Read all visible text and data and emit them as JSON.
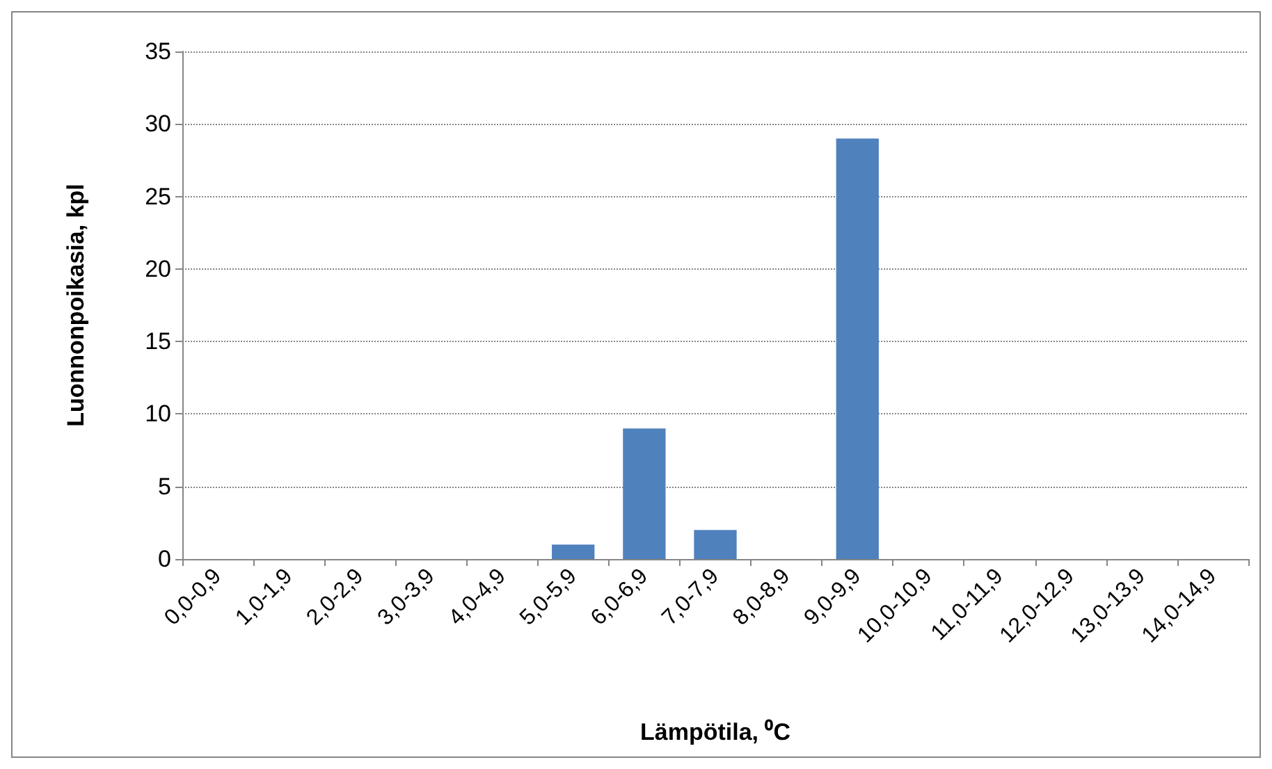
{
  "chart_data": {
    "type": "bar",
    "xlabel": "Lämpötila, ⁰C",
    "ylabel": "Luonnonpoikasia, kpl",
    "categories": [
      "0,0-0,9",
      "1,0-1,9",
      "2,0-2,9",
      "3,0-3,9",
      "4,0-4,9",
      "5,0-5,9",
      "6,0-6,9",
      "7,0-7,9",
      "8,0-8,9",
      "9,0-9,9",
      "10,0-10,9",
      "11,0-11,9",
      "12,0-12,9",
      "13,0-13,9",
      "14,0-14,9"
    ],
    "values": [
      0,
      0,
      0,
      0,
      0,
      1,
      9,
      2,
      0,
      29,
      0,
      0,
      0,
      0,
      0
    ],
    "color": "#4f81bd",
    "ylim": [
      0,
      35
    ],
    "yticks": [
      0,
      5,
      10,
      15,
      20,
      25,
      30,
      35
    ],
    "grid": "y"
  }
}
